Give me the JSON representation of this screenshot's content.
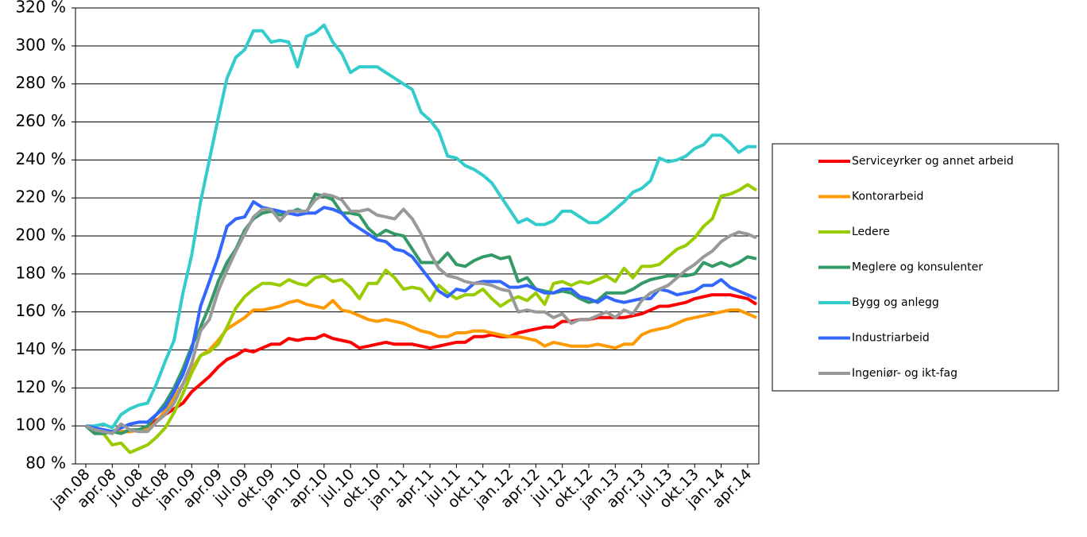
{
  "chart_data": {
    "type": "line",
    "categories": [
      "jan.08",
      null,
      null,
      "apr.08",
      null,
      null,
      "jul.08",
      null,
      null,
      "okt.08",
      null,
      null,
      "jan.09",
      null,
      null,
      "apr.09",
      null,
      null,
      "jul.09",
      null,
      null,
      "okt.09",
      null,
      null,
      "jan.10",
      null,
      null,
      "apr.10",
      null,
      null,
      "jul.10",
      null,
      null,
      "okt.10",
      null,
      null,
      "jan.11",
      null,
      null,
      "apr.11",
      null,
      null,
      "jul.11",
      null,
      null,
      "okt.11",
      null,
      null,
      "jan.12",
      null,
      null,
      "apr.12",
      null,
      null,
      "jul.12",
      null,
      null,
      "okt.12",
      null,
      null,
      "jan.13",
      null,
      null,
      "apr.13",
      null,
      null,
      "jul.13",
      null,
      null,
      "okt.13",
      null,
      null,
      "jan.14",
      null,
      null,
      "apr.14",
      null
    ],
    "ylim": [
      80,
      320
    ],
    "yticks": [
      {
        "value": 80,
        "label": "80 %"
      },
      {
        "value": 100,
        "label": "100 %"
      },
      {
        "value": 120,
        "label": "120 %"
      },
      {
        "value": 140,
        "label": "140 %"
      },
      {
        "value": 160,
        "label": "160 %"
      },
      {
        "value": 180,
        "label": "180 %"
      },
      {
        "value": 200,
        "label": "200 %"
      },
      {
        "value": 220,
        "label": "220 %"
      },
      {
        "value": 240,
        "label": "240 %"
      },
      {
        "value": 260,
        "label": "260 %"
      },
      {
        "value": 280,
        "label": "280 %"
      },
      {
        "value": 300,
        "label": "300 %"
      },
      {
        "value": 320,
        "label": "320 %"
      }
    ],
    "grid": true,
    "legend": "right",
    "series": [
      {
        "name": "Serviceyrker og annet arbeid",
        "color": "#ff0000",
        "values": [
          100,
          98,
          98,
          97,
          97,
          97,
          98,
          99,
          103,
          106,
          109,
          112,
          118,
          122,
          126,
          131,
          135,
          137,
          140,
          139,
          141,
          143,
          143,
          146,
          145,
          146,
          146,
          148,
          146,
          145,
          144,
          141,
          142,
          143,
          144,
          143,
          143,
          143,
          142,
          141,
          142,
          143,
          144,
          144,
          147,
          147,
          148,
          147,
          147,
          149,
          150,
          151,
          152,
          152,
          155,
          155,
          156,
          156,
          157,
          157,
          157,
          157,
          158,
          159,
          161,
          163,
          163,
          164,
          165,
          167,
          168,
          169,
          169,
          169,
          168,
          167,
          164
        ]
      },
      {
        "name": "Kontorarbeid",
        "color": "#ff9900",
        "values": [
          100,
          99,
          98,
          97,
          97,
          97,
          98,
          98,
          102,
          108,
          115,
          122,
          130,
          137,
          140,
          145,
          151,
          154,
          157,
          161,
          161,
          162,
          163,
          165,
          166,
          164,
          163,
          162,
          166,
          161,
          160,
          158,
          156,
          155,
          156,
          155,
          154,
          152,
          150,
          149,
          147,
          147,
          149,
          149,
          150,
          150,
          149,
          148,
          147,
          147,
          146,
          145,
          142,
          144,
          143,
          142,
          142,
          142,
          143,
          142,
          141,
          143,
          143,
          148,
          150,
          151,
          152,
          154,
          156,
          157,
          158,
          159,
          160,
          161,
          161,
          159,
          157
        ]
      },
      {
        "name": "Ledere",
        "color": "#99cc00",
        "values": [
          100,
          97,
          96,
          90,
          91,
          86,
          88,
          90,
          94,
          99,
          107,
          117,
          128,
          137,
          139,
          143,
          152,
          162,
          168,
          172,
          175,
          175,
          174,
          177,
          175,
          174,
          178,
          179,
          176,
          177,
          173,
          167,
          175,
          175,
          182,
          178,
          172,
          173,
          172,
          166,
          174,
          170,
          167,
          169,
          169,
          172,
          167,
          163,
          166,
          168,
          166,
          170,
          164,
          175,
          176,
          174,
          176,
          175,
          177,
          179,
          176,
          183,
          178,
          184,
          184,
          185,
          189,
          193,
          195,
          199,
          205,
          209,
          221,
          222,
          224,
          227,
          224
        ]
      },
      {
        "name": "Meglere og konsulenter",
        "color": "#339966",
        "values": [
          100,
          96,
          96,
          97,
          96,
          98,
          98,
          100,
          106,
          112,
          120,
          130,
          142,
          152,
          163,
          176,
          186,
          193,
          203,
          209,
          212,
          213,
          211,
          212,
          214,
          212,
          222,
          221,
          219,
          212,
          212,
          211,
          204,
          200,
          203,
          201,
          200,
          193,
          186,
          186,
          186,
          191,
          185,
          184,
          187,
          189,
          190,
          188,
          189,
          176,
          178,
          172,
          171,
          170,
          171,
          170,
          167,
          165,
          166,
          170,
          170,
          170,
          172,
          175,
          177,
          178,
          179,
          179,
          179,
          180,
          186,
          184,
          186,
          184,
          186,
          189,
          188
        ]
      },
      {
        "name": "Bygg og anlegg",
        "color": "#33cccc",
        "values": [
          100,
          100,
          101,
          99,
          106,
          109,
          111,
          112,
          122,
          134,
          145,
          170,
          190,
          218,
          240,
          262,
          283,
          294,
          298,
          308,
          308,
          302,
          303,
          302,
          289,
          305,
          307,
          311,
          302,
          296,
          286,
          289,
          289,
          289,
          286,
          283,
          280,
          277,
          265,
          261,
          255,
          242,
          241,
          237,
          235,
          232,
          228,
          221,
          214,
          207,
          209,
          206,
          206,
          208,
          213,
          213,
          210,
          207,
          207,
          210,
          214,
          218,
          223,
          225,
          229,
          241,
          239,
          240,
          242,
          246,
          248,
          253,
          253,
          249,
          244,
          247,
          247
        ]
      },
      {
        "name": "Industriarbeid",
        "color": "#3366ff",
        "values": [
          100,
          99,
          98,
          97,
          99,
          101,
          102,
          102,
          106,
          110,
          118,
          127,
          140,
          163,
          176,
          189,
          205,
          209,
          210,
          218,
          215,
          214,
          213,
          212,
          211,
          212,
          212,
          215,
          214,
          212,
          207,
          204,
          201,
          198,
          197,
          193,
          192,
          189,
          183,
          177,
          171,
          168,
          172,
          171,
          175,
          176,
          176,
          176,
          173,
          173,
          174,
          172,
          170,
          170,
          172,
          172,
          168,
          167,
          165,
          168,
          166,
          165,
          166,
          167,
          167,
          172,
          171,
          169,
          170,
          171,
          174,
          174,
          177,
          173,
          171,
          169,
          167
        ]
      },
      {
        "name": "Ingeniør- og ikt-fag",
        "color": "#999999",
        "values": [
          100,
          98,
          97,
          96,
          101,
          98,
          97,
          97,
          102,
          106,
          112,
          122,
          133,
          150,
          156,
          171,
          182,
          192,
          201,
          210,
          214,
          214,
          208,
          213,
          213,
          213,
          219,
          222,
          221,
          219,
          213,
          213,
          214,
          211,
          210,
          209,
          214,
          209,
          201,
          191,
          183,
          179,
          178,
          176,
          175,
          175,
          174,
          172,
          171,
          160,
          161,
          160,
          160,
          157,
          159,
          154,
          156,
          156,
          158,
          160,
          157,
          161,
          159,
          166,
          170,
          172,
          174,
          178,
          182,
          185,
          189,
          192,
          197,
          200,
          202,
          201,
          199
        ]
      }
    ]
  }
}
